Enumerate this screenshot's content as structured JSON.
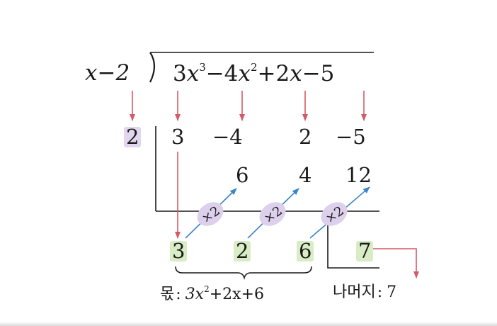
{
  "problem": {
    "divisor": "x−2",
    "dividend": [
      {
        "coef": "3",
        "var": "x",
        "exp": "3"
      },
      {
        "coef": "−4",
        "var": "x",
        "exp": "2"
      },
      {
        "coef": "+2",
        "var": "x",
        "exp": ""
      },
      {
        "coef": "−5",
        "var": "",
        "exp": ""
      }
    ]
  },
  "synthetic": {
    "root": "2",
    "coefficients": [
      "3",
      "−4",
      "2",
      "−5"
    ],
    "products": [
      "6",
      "4",
      "12"
    ],
    "results": [
      "3",
      "2",
      "6"
    ],
    "remainder": "7",
    "multiplier": "×2"
  },
  "answer": {
    "quotient_label": "몫",
    "quotient_terms": [
      "3x",
      "2",
      "+2x+6"
    ],
    "remainder_label": "나머지",
    "remainder_value": "7",
    "colon": ":"
  },
  "colors": {
    "highlight_purple": "#e2d5ee",
    "highlight_green": "#d8ecc6",
    "arrow_red": "#d45a66",
    "arrow_blue": "#3b86c6",
    "oval_purple": "#ddd0ec"
  }
}
